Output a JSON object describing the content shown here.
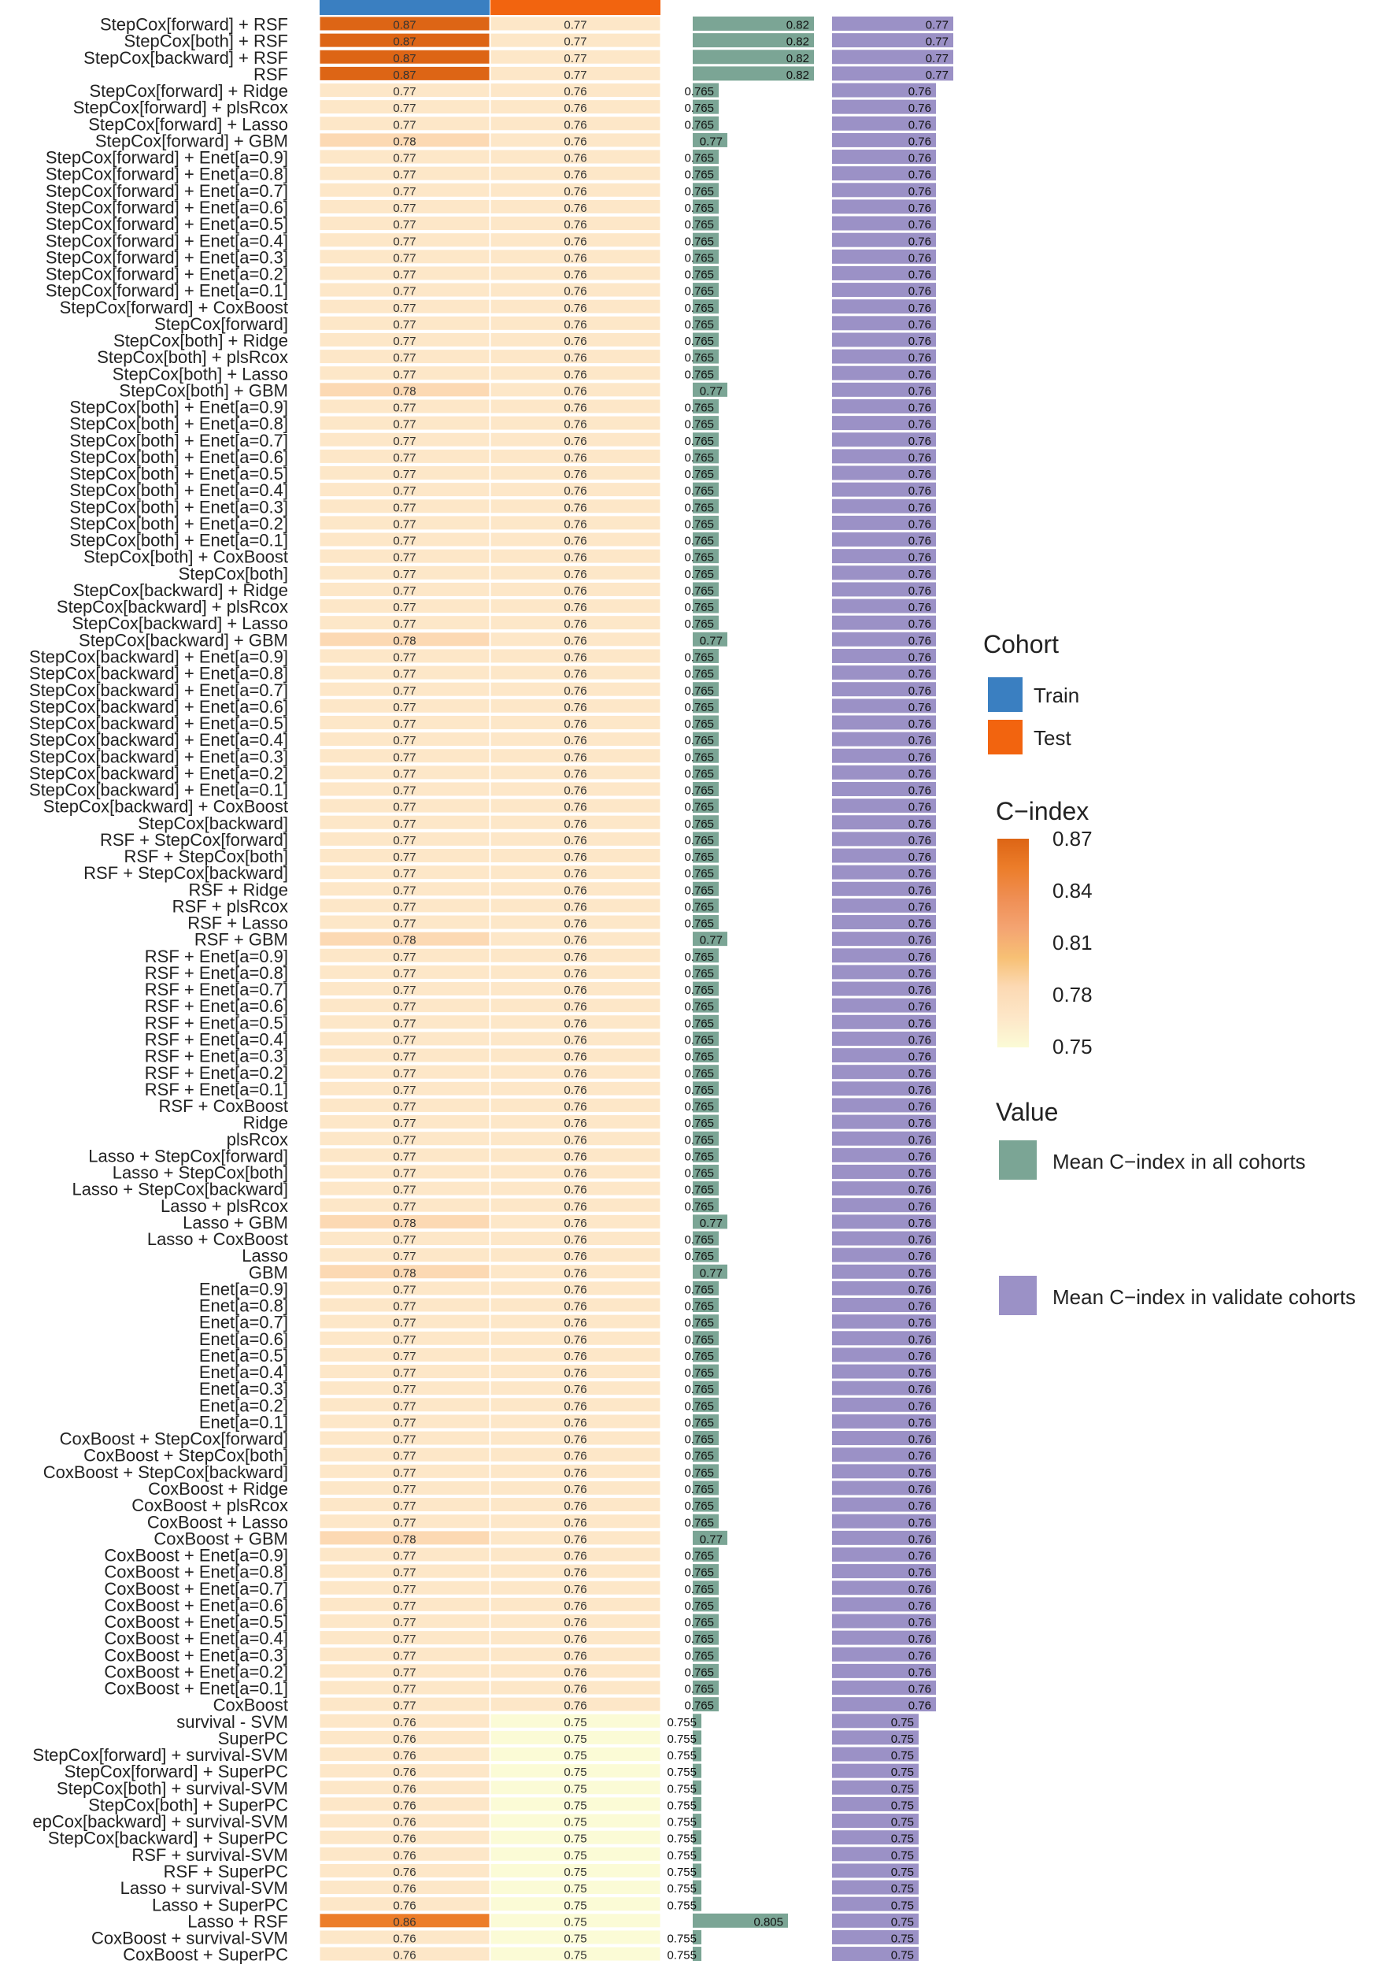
{
  "chart_data": {
    "type": "heatmap",
    "columns": [
      {
        "name": "Train",
        "kind": "cohort"
      },
      {
        "name": "Test",
        "kind": "cohort"
      },
      {
        "name": "Mean C-index in all cohorts",
        "kind": "bar"
      },
      {
        "name": "Mean C-index in validate cohorts",
        "kind": "bar"
      }
    ],
    "rows": [
      {
        "label": "StepCox[forward] + RSF",
        "train": "0.87",
        "test": "0.77",
        "all": "0.82",
        "val": "0.77"
      },
      {
        "label": "StepCox[both] + RSF",
        "train": "0.87",
        "test": "0.77",
        "all": "0.82",
        "val": "0.77"
      },
      {
        "label": "StepCox[backward] + RSF",
        "train": "0.87",
        "test": "0.77",
        "all": "0.82",
        "val": "0.77"
      },
      {
        "label": "RSF",
        "train": "0.87",
        "test": "0.77",
        "all": "0.82",
        "val": "0.77"
      },
      {
        "label": "StepCox[forward] + Ridge",
        "train": "0.77",
        "test": "0.76",
        "all": "0.765",
        "val": "0.76"
      },
      {
        "label": "StepCox[forward] + plsRcox",
        "train": "0.77",
        "test": "0.76",
        "all": "0.765",
        "val": "0.76"
      },
      {
        "label": "StepCox[forward] + Lasso",
        "train": "0.77",
        "test": "0.76",
        "all": "0.765",
        "val": "0.76"
      },
      {
        "label": "StepCox[forward] + GBM",
        "train": "0.78",
        "test": "0.76",
        "all": "0.77",
        "val": "0.76"
      },
      {
        "label": "StepCox[forward] + Enet[a=0.9]",
        "train": "0.77",
        "test": "0.76",
        "all": "0.765",
        "val": "0.76"
      },
      {
        "label": "StepCox[forward] + Enet[a=0.8]",
        "train": "0.77",
        "test": "0.76",
        "all": "0.765",
        "val": "0.76"
      },
      {
        "label": "StepCox[forward] + Enet[a=0.7]",
        "train": "0.77",
        "test": "0.76",
        "all": "0.765",
        "val": "0.76"
      },
      {
        "label": "StepCox[forward] + Enet[a=0.6]",
        "train": "0.77",
        "test": "0.76",
        "all": "0.765",
        "val": "0.76"
      },
      {
        "label": "StepCox[forward] + Enet[a=0.5]",
        "train": "0.77",
        "test": "0.76",
        "all": "0.765",
        "val": "0.76"
      },
      {
        "label": "StepCox[forward] + Enet[a=0.4]",
        "train": "0.77",
        "test": "0.76",
        "all": "0.765",
        "val": "0.76"
      },
      {
        "label": "StepCox[forward] + Enet[a=0.3]",
        "train": "0.77",
        "test": "0.76",
        "all": "0.765",
        "val": "0.76"
      },
      {
        "label": "StepCox[forward] + Enet[a=0.2]",
        "train": "0.77",
        "test": "0.76",
        "all": "0.765",
        "val": "0.76"
      },
      {
        "label": "StepCox[forward] + Enet[a=0.1]",
        "train": "0.77",
        "test": "0.76",
        "all": "0.765",
        "val": "0.76"
      },
      {
        "label": "StepCox[forward] + CoxBoost",
        "train": "0.77",
        "test": "0.76",
        "all": "0.765",
        "val": "0.76"
      },
      {
        "label": "StepCox[forward]",
        "train": "0.77",
        "test": "0.76",
        "all": "0.765",
        "val": "0.76"
      },
      {
        "label": "StepCox[both] + Ridge",
        "train": "0.77",
        "test": "0.76",
        "all": "0.765",
        "val": "0.76"
      },
      {
        "label": "StepCox[both] + plsRcox",
        "train": "0.77",
        "test": "0.76",
        "all": "0.765",
        "val": "0.76"
      },
      {
        "label": "StepCox[both] + Lasso",
        "train": "0.77",
        "test": "0.76",
        "all": "0.765",
        "val": "0.76"
      },
      {
        "label": "StepCox[both] + GBM",
        "train": "0.78",
        "test": "0.76",
        "all": "0.77",
        "val": "0.76"
      },
      {
        "label": "StepCox[both] + Enet[a=0.9]",
        "train": "0.77",
        "test": "0.76",
        "all": "0.765",
        "val": "0.76"
      },
      {
        "label": "StepCox[both] + Enet[a=0.8]",
        "train": "0.77",
        "test": "0.76",
        "all": "0.765",
        "val": "0.76"
      },
      {
        "label": "StepCox[both] + Enet[a=0.7]",
        "train": "0.77",
        "test": "0.76",
        "all": "0.765",
        "val": "0.76"
      },
      {
        "label": "StepCox[both] + Enet[a=0.6]",
        "train": "0.77",
        "test": "0.76",
        "all": "0.765",
        "val": "0.76"
      },
      {
        "label": "StepCox[both] + Enet[a=0.5]",
        "train": "0.77",
        "test": "0.76",
        "all": "0.765",
        "val": "0.76"
      },
      {
        "label": "StepCox[both] + Enet[a=0.4]",
        "train": "0.77",
        "test": "0.76",
        "all": "0.765",
        "val": "0.76"
      },
      {
        "label": "StepCox[both] + Enet[a=0.3]",
        "train": "0.77",
        "test": "0.76",
        "all": "0.765",
        "val": "0.76"
      },
      {
        "label": "StepCox[both] + Enet[a=0.2]",
        "train": "0.77",
        "test": "0.76",
        "all": "0.765",
        "val": "0.76"
      },
      {
        "label": "StepCox[both] + Enet[a=0.1]",
        "train": "0.77",
        "test": "0.76",
        "all": "0.765",
        "val": "0.76"
      },
      {
        "label": "StepCox[both] + CoxBoost",
        "train": "0.77",
        "test": "0.76",
        "all": "0.765",
        "val": "0.76"
      },
      {
        "label": "StepCox[both]",
        "train": "0.77",
        "test": "0.76",
        "all": "0.765",
        "val": "0.76"
      },
      {
        "label": "StepCox[backward] + Ridge",
        "train": "0.77",
        "test": "0.76",
        "all": "0.765",
        "val": "0.76"
      },
      {
        "label": "StepCox[backward] + plsRcox",
        "train": "0.77",
        "test": "0.76",
        "all": "0.765",
        "val": "0.76"
      },
      {
        "label": "StepCox[backward] + Lasso",
        "train": "0.77",
        "test": "0.76",
        "all": "0.765",
        "val": "0.76"
      },
      {
        "label": "StepCox[backward] + GBM",
        "train": "0.78",
        "test": "0.76",
        "all": "0.77",
        "val": "0.76"
      },
      {
        "label": "StepCox[backward] + Enet[a=0.9]",
        "train": "0.77",
        "test": "0.76",
        "all": "0.765",
        "val": "0.76"
      },
      {
        "label": "StepCox[backward] + Enet[a=0.8]",
        "train": "0.77",
        "test": "0.76",
        "all": "0.765",
        "val": "0.76"
      },
      {
        "label": "StepCox[backward] + Enet[a=0.7]",
        "train": "0.77",
        "test": "0.76",
        "all": "0.765",
        "val": "0.76"
      },
      {
        "label": "StepCox[backward] + Enet[a=0.6]",
        "train": "0.77",
        "test": "0.76",
        "all": "0.765",
        "val": "0.76"
      },
      {
        "label": "StepCox[backward] + Enet[a=0.5]",
        "train": "0.77",
        "test": "0.76",
        "all": "0.765",
        "val": "0.76"
      },
      {
        "label": "StepCox[backward] + Enet[a=0.4]",
        "train": "0.77",
        "test": "0.76",
        "all": "0.765",
        "val": "0.76"
      },
      {
        "label": "StepCox[backward] + Enet[a=0.3]",
        "train": "0.77",
        "test": "0.76",
        "all": "0.765",
        "val": "0.76"
      },
      {
        "label": "StepCox[backward] + Enet[a=0.2]",
        "train": "0.77",
        "test": "0.76",
        "all": "0.765",
        "val": "0.76"
      },
      {
        "label": "StepCox[backward] + Enet[a=0.1]",
        "train": "0.77",
        "test": "0.76",
        "all": "0.765",
        "val": "0.76"
      },
      {
        "label": "StepCox[backward] + CoxBoost",
        "train": "0.77",
        "test": "0.76",
        "all": "0.765",
        "val": "0.76"
      },
      {
        "label": "StepCox[backward]",
        "train": "0.77",
        "test": "0.76",
        "all": "0.765",
        "val": "0.76"
      },
      {
        "label": "RSF + StepCox[forward]",
        "train": "0.77",
        "test": "0.76",
        "all": "0.765",
        "val": "0.76"
      },
      {
        "label": "RSF + StepCox[both]",
        "train": "0.77",
        "test": "0.76",
        "all": "0.765",
        "val": "0.76"
      },
      {
        "label": "RSF + StepCox[backward]",
        "train": "0.77",
        "test": "0.76",
        "all": "0.765",
        "val": "0.76"
      },
      {
        "label": "RSF + Ridge",
        "train": "0.77",
        "test": "0.76",
        "all": "0.765",
        "val": "0.76"
      },
      {
        "label": "RSF + plsRcox",
        "train": "0.77",
        "test": "0.76",
        "all": "0.765",
        "val": "0.76"
      },
      {
        "label": "RSF + Lasso",
        "train": "0.77",
        "test": "0.76",
        "all": "0.765",
        "val": "0.76"
      },
      {
        "label": "RSF + GBM",
        "train": "0.78",
        "test": "0.76",
        "all": "0.77",
        "val": "0.76"
      },
      {
        "label": "RSF + Enet[a=0.9]",
        "train": "0.77",
        "test": "0.76",
        "all": "0.765",
        "val": "0.76"
      },
      {
        "label": "RSF + Enet[a=0.8]",
        "train": "0.77",
        "test": "0.76",
        "all": "0.765",
        "val": "0.76"
      },
      {
        "label": "RSF + Enet[a=0.7]",
        "train": "0.77",
        "test": "0.76",
        "all": "0.765",
        "val": "0.76"
      },
      {
        "label": "RSF + Enet[a=0.6]",
        "train": "0.77",
        "test": "0.76",
        "all": "0.765",
        "val": "0.76"
      },
      {
        "label": "RSF + Enet[a=0.5]",
        "train": "0.77",
        "test": "0.76",
        "all": "0.765",
        "val": "0.76"
      },
      {
        "label": "RSF + Enet[a=0.4]",
        "train": "0.77",
        "test": "0.76",
        "all": "0.765",
        "val": "0.76"
      },
      {
        "label": "RSF + Enet[a=0.3]",
        "train": "0.77",
        "test": "0.76",
        "all": "0.765",
        "val": "0.76"
      },
      {
        "label": "RSF + Enet[a=0.2]",
        "train": "0.77",
        "test": "0.76",
        "all": "0.765",
        "val": "0.76"
      },
      {
        "label": "RSF + Enet[a=0.1]",
        "train": "0.77",
        "test": "0.76",
        "all": "0.765",
        "val": "0.76"
      },
      {
        "label": "RSF + CoxBoost",
        "train": "0.77",
        "test": "0.76",
        "all": "0.765",
        "val": "0.76"
      },
      {
        "label": "Ridge",
        "train": "0.77",
        "test": "0.76",
        "all": "0.765",
        "val": "0.76"
      },
      {
        "label": "plsRcox",
        "train": "0.77",
        "test": "0.76",
        "all": "0.765",
        "val": "0.76"
      },
      {
        "label": "Lasso + StepCox[forward]",
        "train": "0.77",
        "test": "0.76",
        "all": "0.765",
        "val": "0.76"
      },
      {
        "label": "Lasso + StepCox[both]",
        "train": "0.77",
        "test": "0.76",
        "all": "0.765",
        "val": "0.76"
      },
      {
        "label": "Lasso + StepCox[backward]",
        "train": "0.77",
        "test": "0.76",
        "all": "0.765",
        "val": "0.76"
      },
      {
        "label": "Lasso + plsRcox",
        "train": "0.77",
        "test": "0.76",
        "all": "0.765",
        "val": "0.76"
      },
      {
        "label": "Lasso + GBM",
        "train": "0.78",
        "test": "0.76",
        "all": "0.77",
        "val": "0.76"
      },
      {
        "label": "Lasso + CoxBoost",
        "train": "0.77",
        "test": "0.76",
        "all": "0.765",
        "val": "0.76"
      },
      {
        "label": "Lasso",
        "train": "0.77",
        "test": "0.76",
        "all": "0.765",
        "val": "0.76"
      },
      {
        "label": "GBM",
        "train": "0.78",
        "test": "0.76",
        "all": "0.77",
        "val": "0.76"
      },
      {
        "label": "Enet[a=0.9]",
        "train": "0.77",
        "test": "0.76",
        "all": "0.765",
        "val": "0.76"
      },
      {
        "label": "Enet[a=0.8]",
        "train": "0.77",
        "test": "0.76",
        "all": "0.765",
        "val": "0.76"
      },
      {
        "label": "Enet[a=0.7]",
        "train": "0.77",
        "test": "0.76",
        "all": "0.765",
        "val": "0.76"
      },
      {
        "label": "Enet[a=0.6]",
        "train": "0.77",
        "test": "0.76",
        "all": "0.765",
        "val": "0.76"
      },
      {
        "label": "Enet[a=0.5]",
        "train": "0.77",
        "test": "0.76",
        "all": "0.765",
        "val": "0.76"
      },
      {
        "label": "Enet[a=0.4]",
        "train": "0.77",
        "test": "0.76",
        "all": "0.765",
        "val": "0.76"
      },
      {
        "label": "Enet[a=0.3]",
        "train": "0.77",
        "test": "0.76",
        "all": "0.765",
        "val": "0.76"
      },
      {
        "label": "Enet[a=0.2]",
        "train": "0.77",
        "test": "0.76",
        "all": "0.765",
        "val": "0.76"
      },
      {
        "label": "Enet[a=0.1]",
        "train": "0.77",
        "test": "0.76",
        "all": "0.765",
        "val": "0.76"
      },
      {
        "label": "CoxBoost + StepCox[forward]",
        "train": "0.77",
        "test": "0.76",
        "all": "0.765",
        "val": "0.76"
      },
      {
        "label": "CoxBoost + StepCox[both]",
        "train": "0.77",
        "test": "0.76",
        "all": "0.765",
        "val": "0.76"
      },
      {
        "label": "CoxBoost + StepCox[backward]",
        "train": "0.77",
        "test": "0.76",
        "all": "0.765",
        "val": "0.76"
      },
      {
        "label": "CoxBoost + Ridge",
        "train": "0.77",
        "test": "0.76",
        "all": "0.765",
        "val": "0.76"
      },
      {
        "label": "CoxBoost + plsRcox",
        "train": "0.77",
        "test": "0.76",
        "all": "0.765",
        "val": "0.76"
      },
      {
        "label": "CoxBoost + Lasso",
        "train": "0.77",
        "test": "0.76",
        "all": "0.765",
        "val": "0.76"
      },
      {
        "label": "CoxBoost + GBM",
        "train": "0.78",
        "test": "0.76",
        "all": "0.77",
        "val": "0.76"
      },
      {
        "label": "CoxBoost + Enet[a=0.9]",
        "train": "0.77",
        "test": "0.76",
        "all": "0.765",
        "val": "0.76"
      },
      {
        "label": "CoxBoost + Enet[a=0.8]",
        "train": "0.77",
        "test": "0.76",
        "all": "0.765",
        "val": "0.76"
      },
      {
        "label": "CoxBoost + Enet[a=0.7]",
        "train": "0.77",
        "test": "0.76",
        "all": "0.765",
        "val": "0.76"
      },
      {
        "label": "CoxBoost + Enet[a=0.6]",
        "train": "0.77",
        "test": "0.76",
        "all": "0.765",
        "val": "0.76"
      },
      {
        "label": "CoxBoost + Enet[a=0.5]",
        "train": "0.77",
        "test": "0.76",
        "all": "0.765",
        "val": "0.76"
      },
      {
        "label": "CoxBoost + Enet[a=0.4]",
        "train": "0.77",
        "test": "0.76",
        "all": "0.765",
        "val": "0.76"
      },
      {
        "label": "CoxBoost + Enet[a=0.3]",
        "train": "0.77",
        "test": "0.76",
        "all": "0.765",
        "val": "0.76"
      },
      {
        "label": "CoxBoost + Enet[a=0.2]",
        "train": "0.77",
        "test": "0.76",
        "all": "0.765",
        "val": "0.76"
      },
      {
        "label": "CoxBoost + Enet[a=0.1]",
        "train": "0.77",
        "test": "0.76",
        "all": "0.765",
        "val": "0.76"
      },
      {
        "label": "CoxBoost",
        "train": "0.77",
        "test": "0.76",
        "all": "0.765",
        "val": "0.76"
      },
      {
        "label": "survival - SVM",
        "train": "0.76",
        "test": "0.75",
        "all": "0.755",
        "val": "0.75"
      },
      {
        "label": "SuperPC",
        "train": "0.76",
        "test": "0.75",
        "all": "0.755",
        "val": "0.75"
      },
      {
        "label": "StepCox[forward] + survival-SVM",
        "train": "0.76",
        "test": "0.75",
        "all": "0.755",
        "val": "0.75"
      },
      {
        "label": "StepCox[forward] + SuperPC",
        "train": "0.76",
        "test": "0.75",
        "all": "0.755",
        "val": "0.75"
      },
      {
        "label": "StepCox[both] + survival-SVM",
        "train": "0.76",
        "test": "0.75",
        "all": "0.755",
        "val": "0.75"
      },
      {
        "label": "StepCox[both] + SuperPC",
        "train": "0.76",
        "test": "0.75",
        "all": "0.755",
        "val": "0.75"
      },
      {
        "label": "epCox[backward] + survival-SVM",
        "train": "0.76",
        "test": "0.75",
        "all": "0.755",
        "val": "0.75"
      },
      {
        "label": "StepCox[backward] + SuperPC",
        "train": "0.76",
        "test": "0.75",
        "all": "0.755",
        "val": "0.75"
      },
      {
        "label": "RSF + survival-SVM",
        "train": "0.76",
        "test": "0.75",
        "all": "0.755",
        "val": "0.75"
      },
      {
        "label": "RSF + SuperPC",
        "train": "0.76",
        "test": "0.75",
        "all": "0.755",
        "val": "0.75"
      },
      {
        "label": "Lasso + survival-SVM",
        "train": "0.76",
        "test": "0.75",
        "all": "0.755",
        "val": "0.75"
      },
      {
        "label": "Lasso + SuperPC",
        "train": "0.76",
        "test": "0.75",
        "all": "0.755",
        "val": "0.75"
      },
      {
        "label": "Lasso + RSF",
        "train": "0.86",
        "test": "0.75",
        "all": "0.805",
        "val": "0.75"
      },
      {
        "label": "CoxBoost + survival-SVM",
        "train": "0.76",
        "test": "0.75",
        "all": "0.755",
        "val": "0.75"
      },
      {
        "label": "CoxBoost + SuperPC",
        "train": "0.76",
        "test": "0.75",
        "all": "0.755",
        "val": "0.75"
      }
    ],
    "scale": {
      "min": 0.75,
      "max": 0.87
    },
    "colors": {
      "train_header": "#3a7fc1",
      "test_header": "#f2640f",
      "bar_all": "#7ba595",
      "bar_val": "#9b91c6",
      "gradient": [
        "#fbfbd6",
        "#fde7c8",
        "#fcd9b3",
        "#f7c074",
        "#f4a472",
        "#ef8f55",
        "#ec7d2a",
        "#dd6515"
      ]
    },
    "legend": {
      "cohort_title": "Cohort",
      "cohort_items": [
        {
          "label": "Train",
          "color": "#3a7fc1"
        },
        {
          "label": "Test",
          "color": "#f2640f"
        }
      ],
      "cindex_title": "C−index",
      "cindex_ticks": [
        "0.87",
        "0.84",
        "0.81",
        "0.78",
        "0.75"
      ],
      "value_title": "Value",
      "value_items": [
        {
          "label": "Mean C−index in all cohorts",
          "color": "#7ba595"
        },
        {
          "label": "Mean C−index in validate cohorts",
          "color": "#9b91c6"
        }
      ]
    }
  }
}
